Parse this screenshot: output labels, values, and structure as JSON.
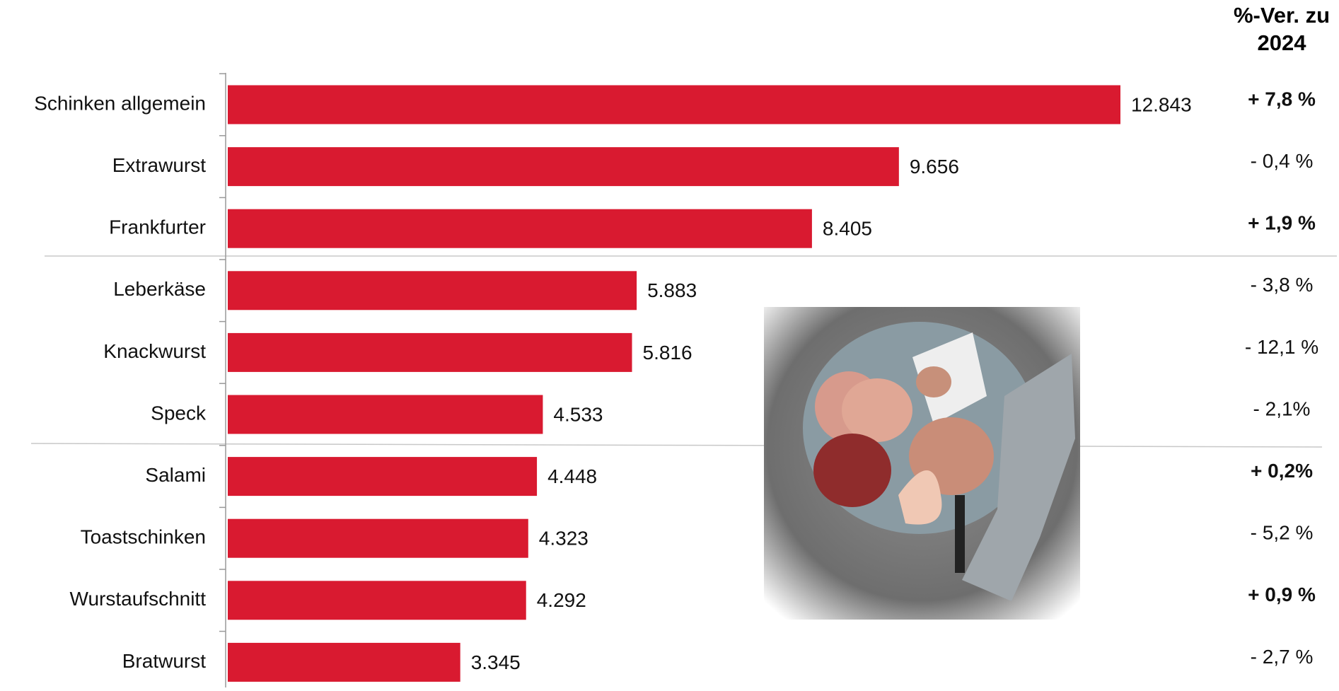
{
  "chart_data": {
    "type": "bar",
    "orientation": "horizontal",
    "categories": [
      "Schinken allgemein",
      "Extrawurst",
      "Frankfurter",
      "Leberkäse",
      "Knackwurst",
      "Speck",
      "Salami",
      "Toastschinken",
      "Wurstaufschnitt",
      "Bratwurst"
    ],
    "values": [
      12843,
      9656,
      8405,
      5883,
      5816,
      4533,
      4448,
      4323,
      4292,
      3345
    ],
    "value_labels": [
      "12.843",
      "9.656",
      "8.405",
      "5.883",
      "5.816",
      "4.533",
      "4.448",
      "4.323",
      "4.292",
      "3.345"
    ],
    "color": "#d91a30",
    "changes": {
      "header": "%-Ver. zu 2024",
      "values": [
        7.8,
        -0.4,
        1.9,
        -3.8,
        -12.1,
        -2.1,
        0.2,
        -5.2,
        0.9,
        -2.7
      ],
      "value_labels": [
        "+ 7,8 %",
        "- 0,4 %",
        "+ 1,9 %",
        "- 3,8 %",
        "- 12,1 %",
        "- 2,1%",
        "+ 0,2%",
        "- 5,2 %",
        "+ 0,9 %",
        "- 2,7 %"
      ],
      "bold": [
        true,
        false,
        true,
        false,
        false,
        false,
        true,
        false,
        true,
        false
      ]
    }
  }
}
